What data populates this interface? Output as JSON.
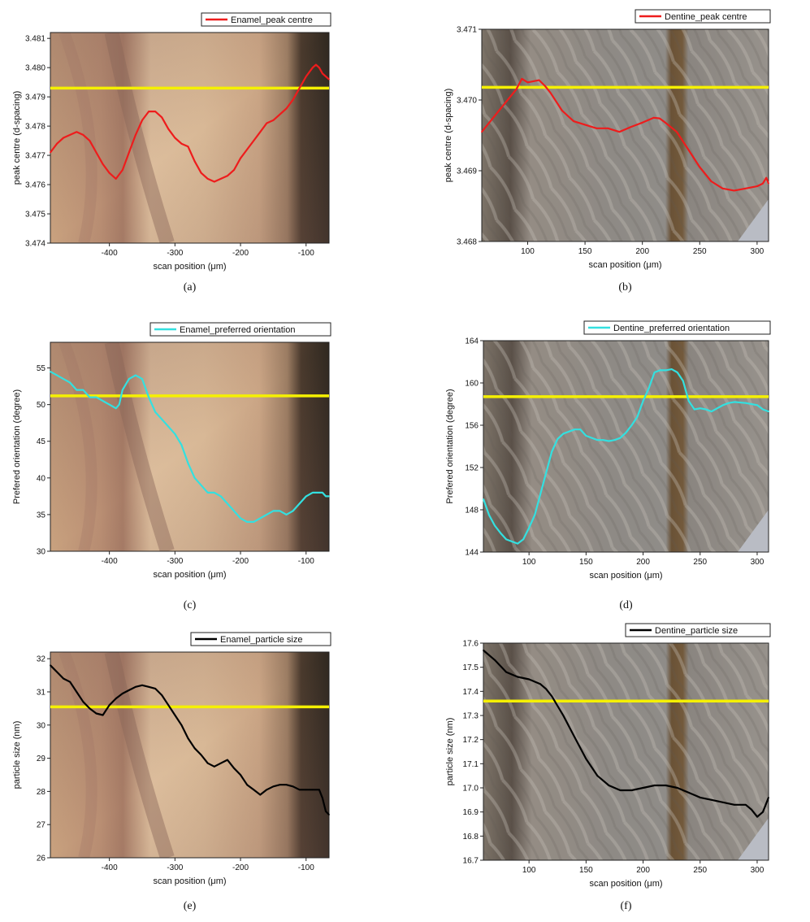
{
  "figure": {
    "panels": [
      {
        "caption": "(a)",
        "bg": "enamel"
      },
      {
        "caption": "(b)",
        "bg": "dentine"
      },
      {
        "caption": "(c)",
        "bg": "enamel"
      },
      {
        "caption": "(d)",
        "bg": "dentine"
      },
      {
        "caption": "(e)",
        "bg": "enamel"
      },
      {
        "caption": "(f)",
        "bg": "dentine"
      }
    ]
  },
  "colors": {
    "red_series": "#ee1c1c",
    "cyan_series": "#33e0e0",
    "black_series": "#000000",
    "reference_line": "#f5f000"
  },
  "chart_data": [
    {
      "type": "line",
      "xlabel": "scan position (μm)",
      "ylabel": "peak centre (d-spacing)",
      "xlim": [
        -490,
        -65
      ],
      "ylim": [
        3.474,
        3.4812
      ],
      "xticks": [
        -400,
        -300,
        -200,
        -100
      ],
      "xtick_labels": [
        "-400",
        "-300",
        "-200",
        "-100"
      ],
      "yticks": [
        3.474,
        3.475,
        3.476,
        3.477,
        3.478,
        3.479,
        3.48,
        3.481
      ],
      "ytick_labels": [
        "3.474",
        "3.475",
        "3.476",
        "3.477",
        "3.478",
        "3.479",
        "3.480",
        "3.481"
      ],
      "legend_position": "top-right",
      "reference_line": 3.4793,
      "series": [
        {
          "name": "Enamel_peak centre",
          "color": "#ee1c1c",
          "x": [
            -490,
            -480,
            -470,
            -460,
            -450,
            -440,
            -430,
            -420,
            -410,
            -400,
            -390,
            -380,
            -370,
            -360,
            -350,
            -340,
            -330,
            -320,
            -310,
            -300,
            -290,
            -280,
            -270,
            -260,
            -250,
            -240,
            -230,
            -220,
            -210,
            -200,
            -190,
            -180,
            -170,
            -160,
            -150,
            -140,
            -130,
            -120,
            -110,
            -100,
            -90,
            -85,
            -80,
            -75,
            -70,
            -65
          ],
          "y": [
            3.4771,
            3.4774,
            3.4776,
            3.4777,
            3.4778,
            3.4777,
            3.4775,
            3.4771,
            3.4767,
            3.4764,
            3.4762,
            3.4765,
            3.4771,
            3.4777,
            3.4782,
            3.4785,
            3.4785,
            3.4783,
            3.4779,
            3.4776,
            3.4774,
            3.4773,
            3.4768,
            3.4764,
            3.4762,
            3.4761,
            3.4762,
            3.4763,
            3.4765,
            3.4769,
            3.4772,
            3.4775,
            3.4778,
            3.4781,
            3.4782,
            3.4784,
            3.4786,
            3.4789,
            3.4793,
            3.4797,
            3.48,
            3.4801,
            3.48,
            3.4798,
            3.4797,
            3.4796
          ]
        }
      ]
    },
    {
      "type": "line",
      "xlabel": "scan position (μm)",
      "ylabel": "peak centre (d-spacing)",
      "xlim": [
        60,
        310
      ],
      "ylim": [
        3.468,
        3.471
      ],
      "xticks": [
        100,
        150,
        200,
        250,
        300
      ],
      "xtick_labels": [
        "100",
        "150",
        "200",
        "250",
        "300"
      ],
      "yticks": [
        3.468,
        3.469,
        3.47,
        3.471
      ],
      "ytick_labels": [
        "3.468",
        "3.469",
        "3.470",
        "3.471"
      ],
      "legend_position": "top-right",
      "reference_line": 3.47018,
      "series": [
        {
          "name": "Dentine_peak centre",
          "color": "#ee1c1c",
          "x": [
            60,
            70,
            80,
            90,
            95,
            100,
            110,
            115,
            120,
            130,
            140,
            150,
            160,
            170,
            180,
            190,
            200,
            210,
            215,
            220,
            230,
            240,
            250,
            260,
            270,
            280,
            290,
            300,
            305,
            308,
            310
          ],
          "y": [
            3.46955,
            3.46975,
            3.46995,
            3.47015,
            3.4703,
            3.47025,
            3.47028,
            3.4702,
            3.4701,
            3.46985,
            3.4697,
            3.46965,
            3.4696,
            3.4696,
            3.46955,
            3.46962,
            3.46968,
            3.46975,
            3.46974,
            3.46968,
            3.46955,
            3.4693,
            3.46905,
            3.46885,
            3.46875,
            3.46872,
            3.46875,
            3.46878,
            3.46882,
            3.4689,
            3.46882
          ]
        }
      ]
    },
    {
      "type": "line",
      "xlabel": "scan position (μm)",
      "ylabel": "Prefered orientation (degree)",
      "xlim": [
        -490,
        -65
      ],
      "ylim": [
        30,
        58.5
      ],
      "xticks": [
        -400,
        -300,
        -200,
        -100
      ],
      "xtick_labels": [
        "-400",
        "-300",
        "-200",
        "-100"
      ],
      "yticks": [
        30,
        35,
        40,
        45,
        50,
        55
      ],
      "ytick_labels": [
        "30",
        "35",
        "40",
        "45",
        "50",
        "55"
      ],
      "legend_position": "top-right",
      "reference_line": 51.2,
      "series": [
        {
          "name": "Enamel_preferred orientation",
          "color": "#33e0e0",
          "x": [
            -490,
            -480,
            -470,
            -460,
            -450,
            -440,
            -430,
            -420,
            -410,
            -400,
            -390,
            -385,
            -380,
            -370,
            -360,
            -350,
            -340,
            -330,
            -320,
            -310,
            -300,
            -290,
            -280,
            -270,
            -260,
            -250,
            -240,
            -230,
            -220,
            -210,
            -200,
            -190,
            -180,
            -170,
            -160,
            -150,
            -140,
            -130,
            -120,
            -110,
            -100,
            -90,
            -80,
            -75,
            -70,
            -65
          ],
          "y": [
            54.5,
            54,
            53.5,
            53,
            52,
            52,
            51,
            51,
            50.5,
            50,
            49.5,
            50,
            52,
            53.5,
            54,
            53.5,
            51,
            49,
            48,
            47,
            46,
            44.5,
            42,
            40,
            39,
            38,
            38,
            37.5,
            36.5,
            35.5,
            34.5,
            34,
            34,
            34.5,
            35,
            35.5,
            35.5,
            35,
            35.5,
            36.5,
            37.5,
            38,
            38,
            38,
            37.5,
            37.5
          ]
        }
      ]
    },
    {
      "type": "line",
      "xlabel": "scan position (μm)",
      "ylabel": "Prefered orientation (degree)",
      "xlim": [
        60,
        310
      ],
      "ylim": [
        144,
        164
      ],
      "xticks": [
        100,
        150,
        200,
        250,
        300
      ],
      "xtick_labels": [
        "100",
        "150",
        "200",
        "250",
        "300"
      ],
      "yticks": [
        144,
        148,
        152,
        156,
        160,
        164
      ],
      "ytick_labels": [
        "144",
        "148",
        "152",
        "156",
        "160",
        "164"
      ],
      "legend_position": "top-right",
      "reference_line": 158.7,
      "series": [
        {
          "name": "Dentine_preferred orientation",
          "color": "#33e0e0",
          "x": [
            60,
            65,
            70,
            75,
            80,
            85,
            90,
            95,
            100,
            105,
            110,
            115,
            120,
            125,
            130,
            135,
            140,
            145,
            150,
            155,
            160,
            165,
            170,
            175,
            180,
            185,
            190,
            195,
            200,
            205,
            210,
            215,
            220,
            225,
            230,
            235,
            240,
            245,
            250,
            255,
            260,
            265,
            270,
            275,
            280,
            290,
            300,
            305,
            310
          ],
          "y": [
            149,
            147.5,
            146.5,
            145.8,
            145.2,
            145,
            144.8,
            145.2,
            146.3,
            147.5,
            149.5,
            151.5,
            153.5,
            154.7,
            155.2,
            155.4,
            155.6,
            155.6,
            155,
            154.8,
            154.6,
            154.6,
            154.5,
            154.6,
            154.8,
            155.3,
            156,
            156.8,
            158.3,
            159.5,
            161,
            161.2,
            161.2,
            161.3,
            161,
            160.2,
            158.3,
            157.5,
            157.6,
            157.5,
            157.3,
            157.6,
            157.9,
            158.1,
            158.2,
            158.1,
            157.9,
            157.5,
            157.3
          ]
        }
      ]
    },
    {
      "type": "line",
      "xlabel": "scan position (μm)",
      "ylabel": "particle size (nm)",
      "xlim": [
        -490,
        -65
      ],
      "ylim": [
        26,
        32.2
      ],
      "xticks": [
        -400,
        -300,
        -200,
        -100
      ],
      "xtick_labels": [
        "-400",
        "-300",
        "-200",
        "-100"
      ],
      "yticks": [
        26,
        27,
        28,
        29,
        30,
        31,
        32
      ],
      "ytick_labels": [
        "26",
        "27",
        "28",
        "29",
        "30",
        "31",
        "32"
      ],
      "legend_position": "top-right",
      "reference_line": 30.55,
      "series": [
        {
          "name": "Enamel_particle size",
          "color": "#000000",
          "x": [
            -490,
            -480,
            -470,
            -460,
            -450,
            -440,
            -430,
            -420,
            -410,
            -400,
            -390,
            -380,
            -370,
            -360,
            -350,
            -340,
            -330,
            -320,
            -310,
            -300,
            -290,
            -280,
            -270,
            -260,
            -250,
            -240,
            -230,
            -220,
            -210,
            -200,
            -190,
            -180,
            -170,
            -160,
            -150,
            -140,
            -130,
            -120,
            -110,
            -100,
            -90,
            -80,
            -75,
            -70,
            -65
          ],
          "y": [
            31.8,
            31.6,
            31.4,
            31.3,
            31,
            30.7,
            30.5,
            30.35,
            30.3,
            30.6,
            30.8,
            30.95,
            31.05,
            31.15,
            31.2,
            31.15,
            31.1,
            30.9,
            30.6,
            30.3,
            30,
            29.6,
            29.3,
            29.1,
            28.85,
            28.75,
            28.85,
            28.95,
            28.7,
            28.5,
            28.2,
            28.05,
            27.9,
            28.05,
            28.15,
            28.2,
            28.2,
            28.15,
            28.05,
            28.05,
            28.05,
            28.05,
            27.8,
            27.4,
            27.3
          ]
        }
      ]
    },
    {
      "type": "line",
      "xlabel": "scan position (μm)",
      "ylabel": "particle size (nm)",
      "xlim": [
        60,
        310
      ],
      "ylim": [
        16.7,
        17.6
      ],
      "xticks": [
        100,
        150,
        200,
        250,
        300
      ],
      "xtick_labels": [
        "100",
        "150",
        "200",
        "250",
        "300"
      ],
      "yticks": [
        16.7,
        16.8,
        16.9,
        17,
        17.1,
        17.2,
        17.3,
        17.4,
        17.5,
        17.6
      ],
      "ytick_labels": [
        "16.7",
        "16.8",
        "16.9",
        "17.0",
        "17.1",
        "17.2",
        "17.3",
        "17.4",
        "17.5",
        "17.6"
      ],
      "legend_position": "top-right",
      "reference_line": 17.36,
      "series": [
        {
          "name": "Dentine_particle size",
          "color": "#000000",
          "x": [
            60,
            70,
            80,
            90,
            100,
            110,
            115,
            120,
            130,
            140,
            150,
            160,
            170,
            180,
            190,
            200,
            210,
            220,
            230,
            240,
            250,
            260,
            270,
            280,
            290,
            295,
            300,
            305,
            310
          ],
          "y": [
            17.57,
            17.53,
            17.48,
            17.46,
            17.45,
            17.43,
            17.41,
            17.38,
            17.3,
            17.21,
            17.12,
            17.05,
            17.01,
            16.99,
            16.99,
            17,
            17.01,
            17.01,
            17,
            16.98,
            16.96,
            16.95,
            16.94,
            16.93,
            16.93,
            16.91,
            16.88,
            16.9,
            16.96
          ]
        }
      ]
    }
  ]
}
